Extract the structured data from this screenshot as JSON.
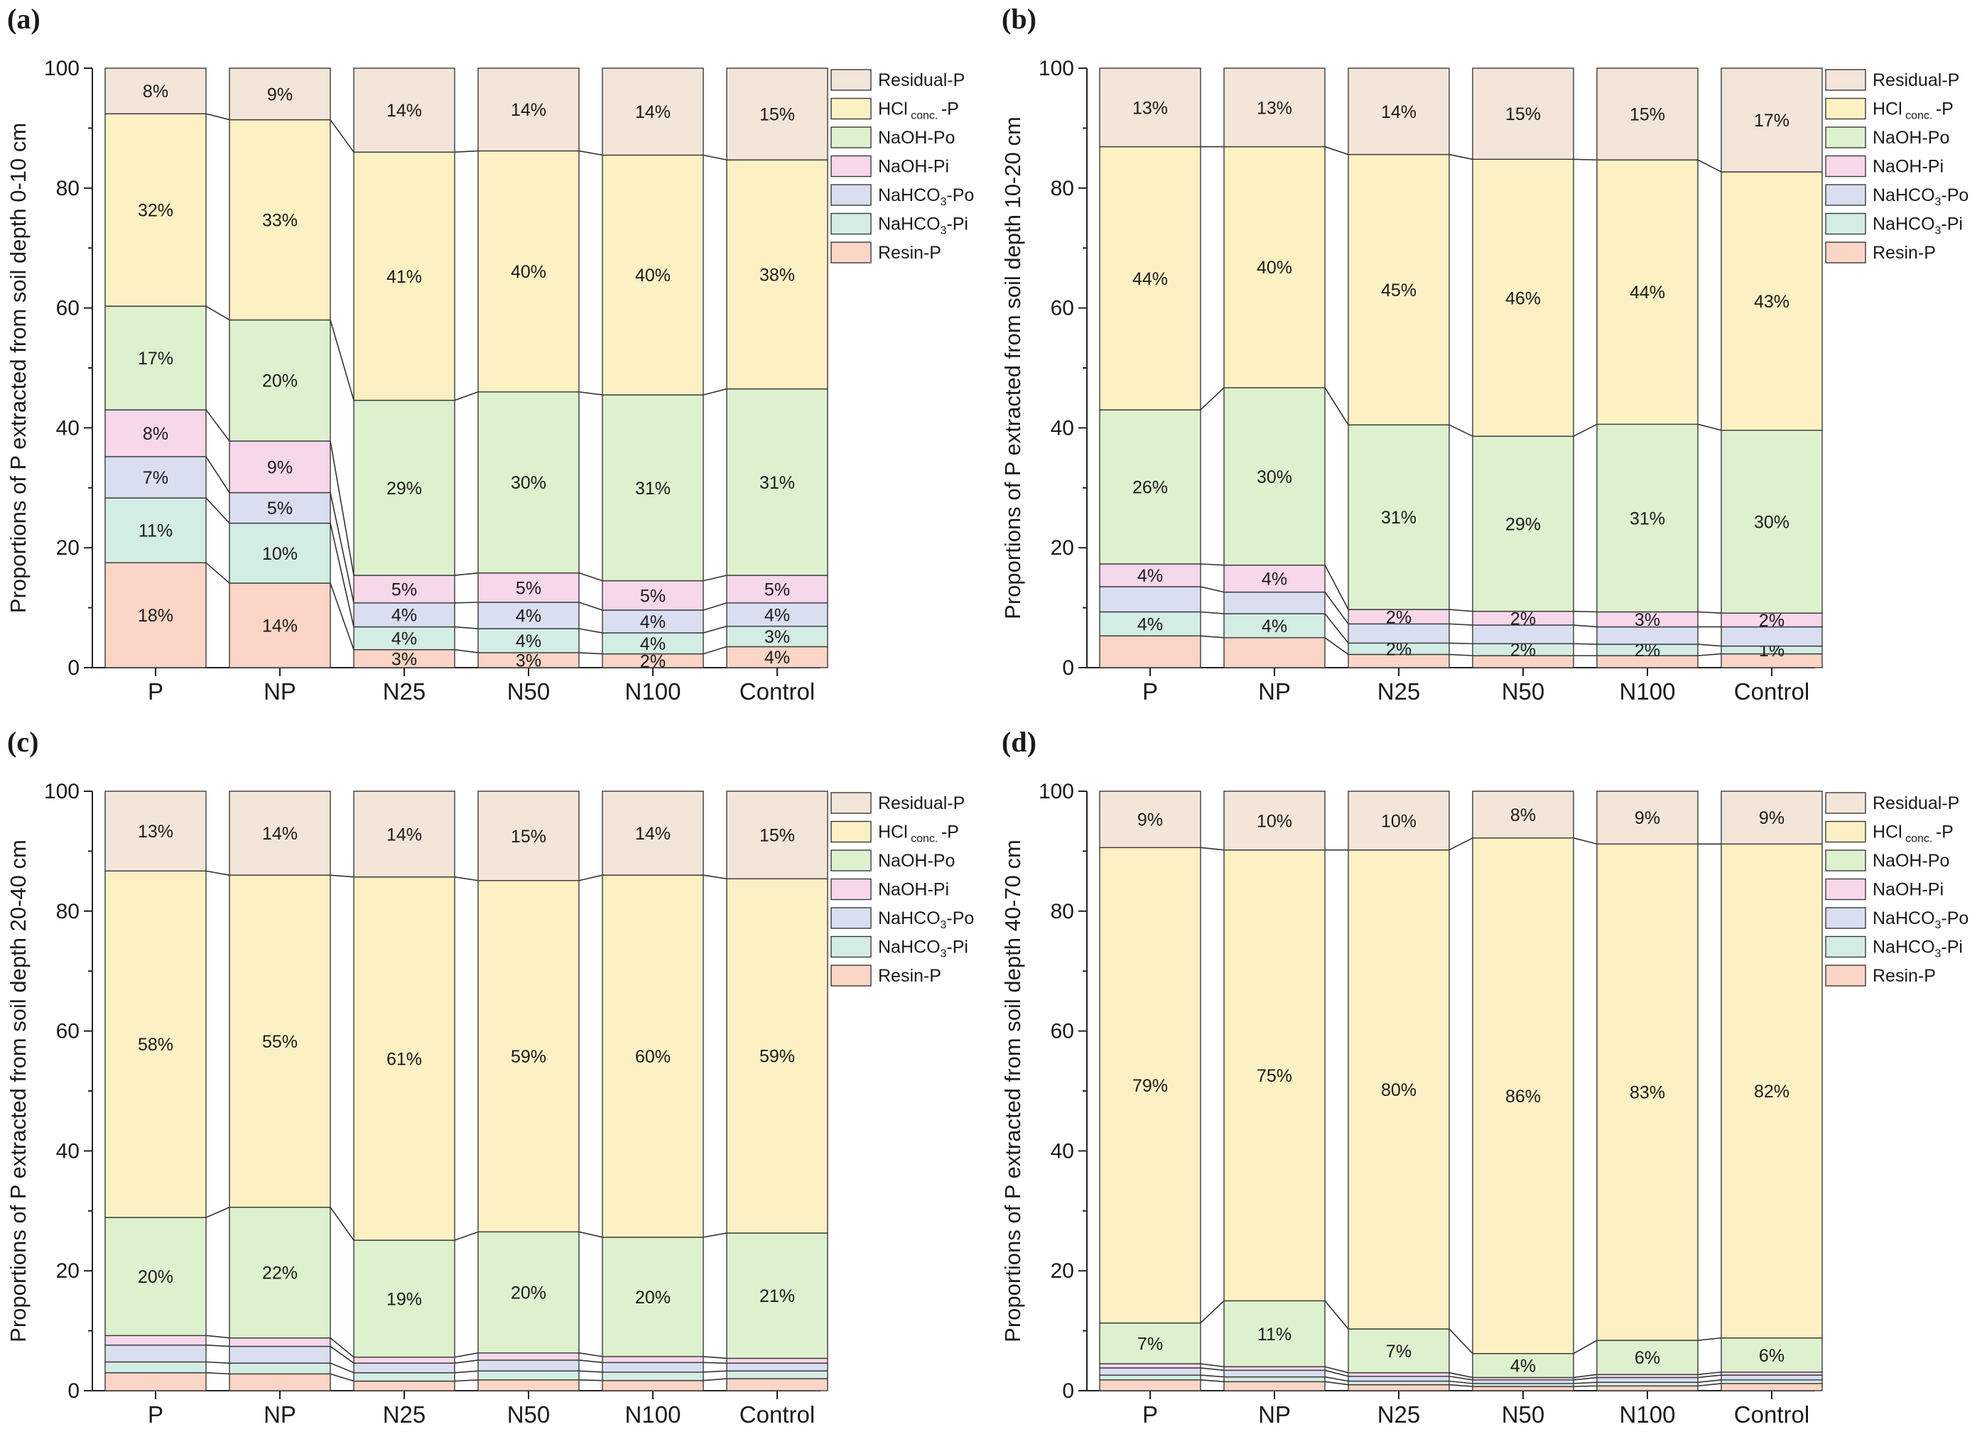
{
  "chart_data": [
    {
      "type": "bar",
      "stacked": true,
      "panel": "(a)",
      "ylabel": "Proportions of P extracted from soil depth 0-10 cm",
      "xlabel": "",
      "ylim": [
        0,
        100
      ],
      "yticks": [
        "0",
        "20",
        "40",
        "60",
        "80",
        "100"
      ],
      "categories": [
        "P",
        "NP",
        "N25",
        "N50",
        "N100",
        "Control"
      ],
      "series": [
        {
          "name": "Resin-P",
          "color": "#fbd5c5",
          "values": [
            17.5,
            14.1,
            3.0,
            2.5,
            2.3,
            3.5
          ],
          "labels": [
            "18%",
            "14%",
            "3%",
            "3%",
            "2%",
            "4%"
          ]
        },
        {
          "name": "NaHCO3-Pi",
          "color": "#d4ede4",
          "values": [
            10.8,
            10.0,
            3.8,
            4.0,
            3.5,
            3.4
          ],
          "labels": [
            "11%",
            "10%",
            "4%",
            "4%",
            "4%",
            "3%"
          ]
        },
        {
          "name": "NaHCO3-Po",
          "color": "#d9def0",
          "values": [
            6.9,
            5.1,
            4.0,
            4.4,
            3.8,
            3.9
          ],
          "labels": [
            "7%",
            "5%",
            "4%",
            "4%",
            "4%",
            "4%"
          ]
        },
        {
          "name": "NaOH-Pi",
          "color": "#f7d7ea",
          "values": [
            7.8,
            8.6,
            4.6,
            4.9,
            4.9,
            4.6
          ],
          "labels": [
            "8%",
            "9%",
            "5%",
            "5%",
            "5%",
            "5%"
          ]
        },
        {
          "name": "NaOH-Po",
          "color": "#def1cf",
          "values": [
            17.3,
            20.2,
            29.2,
            30.2,
            31.0,
            31.1
          ],
          "labels": [
            "17%",
            "20%",
            "29%",
            "30%",
            "31%",
            "31%"
          ]
        },
        {
          "name": "HClconc-P",
          "color": "#fdf1c4",
          "values": [
            32.1,
            33.4,
            41.4,
            40.2,
            40.0,
            38.2
          ],
          "labels": [
            "32%",
            "33%",
            "41%",
            "40%",
            "40%",
            "38%"
          ]
        },
        {
          "name": "Residual-P",
          "color": "#f3e6d9",
          "values": [
            7.6,
            8.6,
            14.0,
            13.8,
            14.5,
            15.3
          ],
          "labels": [
            "8%",
            "9%",
            "14%",
            "14%",
            "14%",
            "15%"
          ]
        }
      ]
    },
    {
      "type": "bar",
      "stacked": true,
      "panel": "(b)",
      "ylabel": "Proportions of P extracted from soil depth 10-20 cm",
      "xlabel": "",
      "ylim": [
        0,
        100
      ],
      "yticks": [
        "0",
        "20",
        "40",
        "60",
        "80",
        "100"
      ],
      "categories": [
        "P",
        "NP",
        "N25",
        "N50",
        "N100",
        "Control"
      ],
      "series": [
        {
          "name": "Resin-P",
          "color": "#fbd5c5",
          "values": [
            5.3,
            5.0,
            2.2,
            2.0,
            2.0,
            2.3
          ],
          "labels": [
            "",
            "",
            "",
            "",
            "",
            ""
          ]
        },
        {
          "name": "NaHCO3-Pi",
          "color": "#d4ede4",
          "values": [
            4.0,
            4.0,
            1.9,
            2.0,
            1.9,
            1.3
          ],
          "labels": [
            "4%",
            "4%",
            "2%",
            "2%",
            "2%",
            "1%"
          ]
        },
        {
          "name": "NaHCO3-Po",
          "color": "#d9def0",
          "values": [
            4.2,
            3.6,
            3.2,
            3.1,
            2.9,
            3.2
          ],
          "labels": [
            "",
            "",
            "",
            "",
            "",
            ""
          ]
        },
        {
          "name": "NaOH-Pi",
          "color": "#f7d7ea",
          "values": [
            3.8,
            4.5,
            2.4,
            2.3,
            2.5,
            2.3
          ],
          "labels": [
            "4%",
            "4%",
            "2%",
            "2%",
            "3%",
            "2%"
          ]
        },
        {
          "name": "NaOH-Po",
          "color": "#def1cf",
          "values": [
            25.7,
            29.6,
            30.8,
            29.2,
            31.3,
            30.5
          ],
          "labels": [
            "26%",
            "30%",
            "31%",
            "29%",
            "31%",
            "30%"
          ]
        },
        {
          "name": "HClconc-P",
          "color": "#fdf1c4",
          "values": [
            43.9,
            40.2,
            45.1,
            46.2,
            44.1,
            43.1
          ],
          "labels": [
            "44%",
            "40%",
            "45%",
            "46%",
            "44%",
            "43%"
          ]
        },
        {
          "name": "Residual-P",
          "color": "#f3e6d9",
          "values": [
            13.1,
            13.1,
            14.4,
            15.2,
            15.3,
            17.3
          ],
          "labels": [
            "13%",
            "13%",
            "14%",
            "15%",
            "15%",
            "17%"
          ]
        }
      ]
    },
    {
      "type": "bar",
      "stacked": true,
      "panel": "(c)",
      "ylabel": "Proportions of P extracted from soil depth 20-40 cm",
      "xlabel": "",
      "ylim": [
        0,
        100
      ],
      "yticks": [
        "0",
        "20",
        "40",
        "60",
        "80",
        "100"
      ],
      "categories": [
        "P",
        "NP",
        "N25",
        "N50",
        "N100",
        "Control"
      ],
      "series": [
        {
          "name": "Resin-P",
          "color": "#fbd5c5",
          "values": [
            3.0,
            2.8,
            1.6,
            1.8,
            1.7,
            2.0
          ],
          "labels": [
            "",
            "",
            "",
            "",
            "",
            ""
          ]
        },
        {
          "name": "NaHCO3-Pi",
          "color": "#d4ede4",
          "values": [
            1.8,
            1.8,
            1.4,
            1.5,
            1.4,
            1.3
          ],
          "labels": [
            "",
            "",
            "",
            "",
            "",
            ""
          ]
        },
        {
          "name": "NaHCO3-Po",
          "color": "#d9def0",
          "values": [
            2.8,
            2.8,
            1.6,
            1.8,
            1.6,
            1.3
          ],
          "labels": [
            "",
            "",
            "",
            "",
            "",
            ""
          ]
        },
        {
          "name": "NaOH-Pi",
          "color": "#f7d7ea",
          "values": [
            1.6,
            1.4,
            1.0,
            1.2,
            1.0,
            0.8
          ],
          "labels": [
            "",
            "",
            "",
            "",
            "",
            ""
          ]
        },
        {
          "name": "NaOH-Po",
          "color": "#def1cf",
          "values": [
            19.7,
            21.8,
            19.5,
            20.2,
            19.9,
            20.9
          ],
          "labels": [
            "20%",
            "22%",
            "19%",
            "20%",
            "20%",
            "21%"
          ]
        },
        {
          "name": "HClconc-P",
          "color": "#fdf1c4",
          "values": [
            57.8,
            55.4,
            60.6,
            58.6,
            60.4,
            59.1
          ],
          "labels": [
            "58%",
            "55%",
            "61%",
            "59%",
            "60%",
            "59%"
          ]
        },
        {
          "name": "Residual-P",
          "color": "#f3e6d9",
          "values": [
            13.3,
            14.0,
            14.3,
            14.9,
            14.0,
            14.6
          ],
          "labels": [
            "13%",
            "14%",
            "14%",
            "15%",
            "14%",
            "15%"
          ]
        }
      ]
    },
    {
      "type": "bar",
      "stacked": true,
      "panel": "(d)",
      "ylabel": "Proportions of P extracted from soil depth 40-70 cm",
      "xlabel": "",
      "ylim": [
        0,
        100
      ],
      "yticks": [
        "0",
        "20",
        "40",
        "60",
        "80",
        "100"
      ],
      "categories": [
        "P",
        "NP",
        "N25",
        "N50",
        "N100",
        "Control"
      ],
      "series": [
        {
          "name": "Resin-P",
          "color": "#fbd5c5",
          "values": [
            1.8,
            1.5,
            1.0,
            0.7,
            0.8,
            1.2
          ],
          "labels": [
            "",
            "",
            "",
            "",
            "",
            ""
          ]
        },
        {
          "name": "NaHCO3-Pi",
          "color": "#d4ede4",
          "values": [
            0.8,
            0.8,
            0.6,
            0.5,
            0.6,
            0.6
          ],
          "labels": [
            "",
            "",
            "",
            "",
            "",
            ""
          ]
        },
        {
          "name": "NaHCO3-Po",
          "color": "#d9def0",
          "values": [
            1.2,
            1.1,
            0.8,
            0.6,
            0.8,
            0.8
          ],
          "labels": [
            "",
            "",
            "",
            "",
            "",
            ""
          ]
        },
        {
          "name": "NaOH-Pi",
          "color": "#f7d7ea",
          "values": [
            0.7,
            0.6,
            0.6,
            0.4,
            0.5,
            0.5
          ],
          "labels": [
            "",
            "",
            "",
            "",
            "",
            ""
          ]
        },
        {
          "name": "NaOH-Po",
          "color": "#def1cf",
          "values": [
            6.8,
            11.0,
            7.3,
            4.0,
            5.7,
            5.7
          ],
          "labels": [
            "7%",
            "11%",
            "7%",
            "4%",
            "6%",
            "6%"
          ]
        },
        {
          "name": "HClconc-P",
          "color": "#fdf1c4",
          "values": [
            79.3,
            75.2,
            79.9,
            86.0,
            82.8,
            82.4
          ],
          "labels": [
            "79%",
            "75%",
            "80%",
            "86%",
            "83%",
            "82%"
          ]
        },
        {
          "name": "Residual-P",
          "color": "#f3e6d9",
          "values": [
            9.4,
            9.8,
            9.8,
            7.8,
            8.8,
            8.8
          ],
          "labels": [
            "9%",
            "10%",
            "10%",
            "8%",
            "9%",
            "9%"
          ]
        }
      ]
    }
  ],
  "legend": {
    "placement": "right of each panel, top",
    "entries": [
      {
        "main": "Residual-P",
        "sub": "",
        "tail": "",
        "color": "#f3e6d9"
      },
      {
        "main": "HCl",
        "sub": "conc.",
        "tail": "-P",
        "color": "#fdf1c4"
      },
      {
        "main": "NaOH-Po",
        "sub": "",
        "tail": "",
        "color": "#def1cf"
      },
      {
        "main": "NaOH-Pi",
        "sub": "",
        "tail": "",
        "color": "#f7d7ea"
      },
      {
        "main": "NaHCO",
        "sub": "3",
        "tail": "-Po",
        "color": "#d9def0"
      },
      {
        "main": "NaHCO",
        "sub": "3",
        "tail": "-Pi",
        "color": "#d4ede4"
      },
      {
        "main": "Resin-P",
        "sub": "",
        "tail": "",
        "color": "#fbd5c5"
      }
    ]
  }
}
